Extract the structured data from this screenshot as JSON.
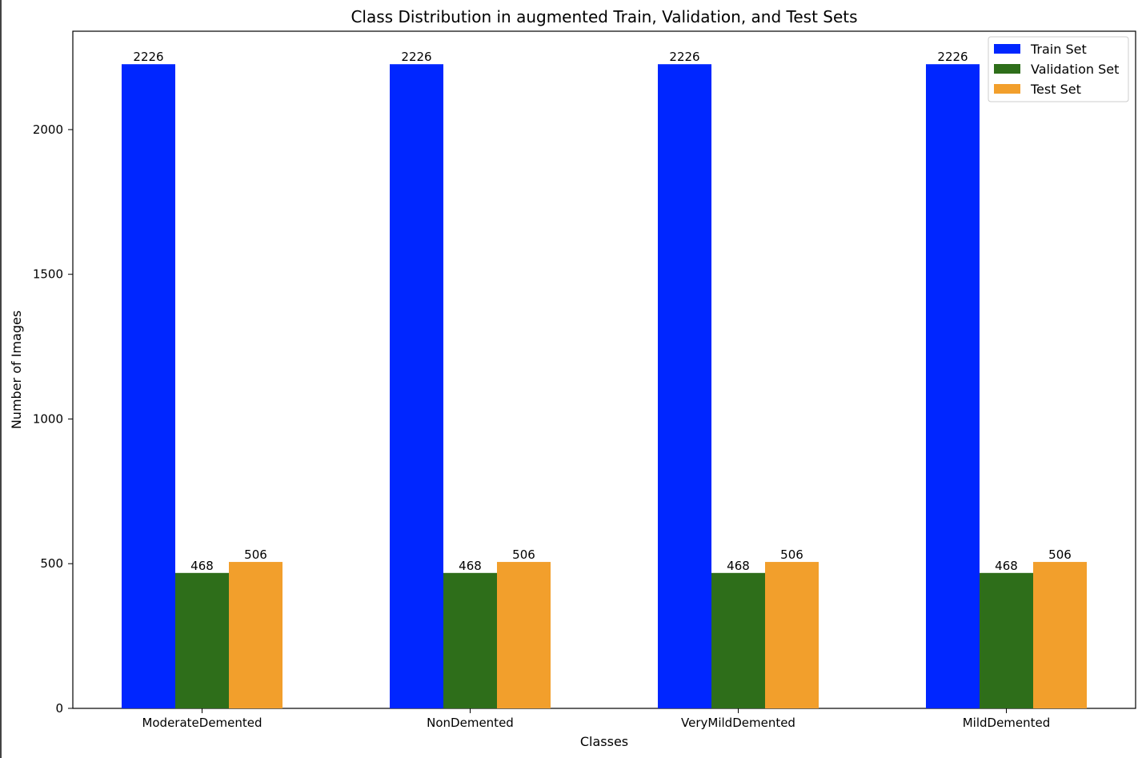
{
  "chart_data": {
    "type": "bar",
    "title": "Class Distribution in augmented Train, Validation, and Test Sets",
    "xlabel": "Classes",
    "ylabel": "Number of Images",
    "categories": [
      "ModerateDemented",
      "NonDemented",
      "VeryMildDemented",
      "MildDemented"
    ],
    "series": [
      {
        "name": "Train Set",
        "values": [
          2226,
          2226,
          2226,
          2226
        ],
        "color": "#0026ff"
      },
      {
        "name": "Validation Set",
        "values": [
          468,
          468,
          468,
          468
        ],
        "color": "#2e6e1a"
      },
      {
        "name": "Test Set",
        "values": [
          506,
          506,
          506,
          506
        ],
        "color": "#f29f2c"
      }
    ],
    "ylim": [
      0,
      2340
    ],
    "yticks": [
      0,
      500,
      1000,
      1500,
      2000
    ],
    "grid": false,
    "legend_position": "top-right",
    "show_value_labels": true
  }
}
